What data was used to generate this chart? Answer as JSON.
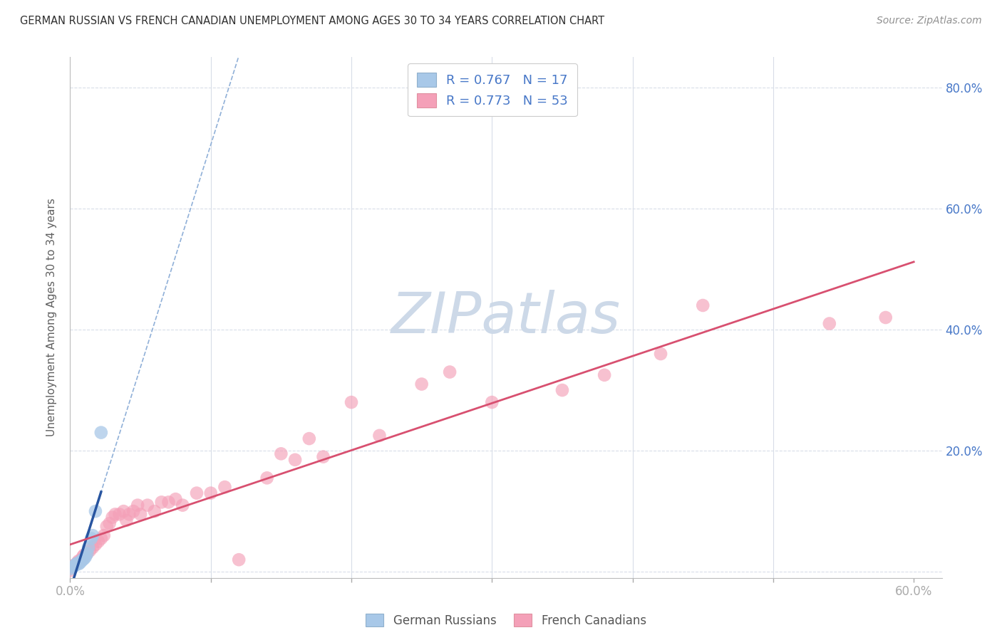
{
  "title": "GERMAN RUSSIAN VS FRENCH CANADIAN UNEMPLOYMENT AMONG AGES 30 TO 34 YEARS CORRELATION CHART",
  "source": "Source: ZipAtlas.com",
  "ylabel": "Unemployment Among Ages 30 to 34 years",
  "xlim": [
    0.0,
    0.62
  ],
  "ylim": [
    -0.01,
    0.85
  ],
  "gr_R": 0.767,
  "gr_N": 17,
  "fc_R": 0.773,
  "fc_N": 53,
  "gr_scatter_color": "#a8c8e8",
  "fc_scatter_color": "#f4a0b8",
  "gr_line_color": "#2855a0",
  "fc_line_color": "#d85070",
  "gr_dashed_color": "#90b0d8",
  "watermark": "ZIPatlas",
  "watermark_color": "#cdd9e8",
  "grid_color": "#d8dde8",
  "axis_label_color": "#4878c8",
  "title_color": "#303030",
  "source_color": "#909090",
  "bg_color": "#ffffff",
  "gr_x": [
    0.0,
    0.002,
    0.003,
    0.004,
    0.005,
    0.006,
    0.007,
    0.008,
    0.009,
    0.01,
    0.011,
    0.012,
    0.013,
    0.015,
    0.016,
    0.018,
    0.022
  ],
  "gr_y": [
    0.005,
    0.008,
    0.01,
    0.012,
    0.014,
    0.013,
    0.015,
    0.018,
    0.02,
    0.022,
    0.025,
    0.03,
    0.04,
    0.055,
    0.06,
    0.1,
    0.23
  ],
  "fc_x": [
    0.0,
    0.0,
    0.002,
    0.004,
    0.005,
    0.006,
    0.008,
    0.009,
    0.01,
    0.012,
    0.014,
    0.016,
    0.018,
    0.02,
    0.022,
    0.024,
    0.026,
    0.028,
    0.03,
    0.032,
    0.035,
    0.038,
    0.04,
    0.042,
    0.045,
    0.048,
    0.05,
    0.055,
    0.06,
    0.065,
    0.07,
    0.075,
    0.08,
    0.09,
    0.1,
    0.11,
    0.12,
    0.14,
    0.15,
    0.16,
    0.17,
    0.18,
    0.2,
    0.22,
    0.25,
    0.27,
    0.3,
    0.35,
    0.38,
    0.42,
    0.45,
    0.54,
    0.58
  ],
  "fc_y": [
    0.002,
    0.008,
    0.01,
    0.012,
    0.015,
    0.018,
    0.02,
    0.025,
    0.028,
    0.03,
    0.035,
    0.04,
    0.045,
    0.05,
    0.055,
    0.06,
    0.075,
    0.08,
    0.09,
    0.095,
    0.095,
    0.1,
    0.085,
    0.095,
    0.1,
    0.11,
    0.095,
    0.11,
    0.1,
    0.115,
    0.115,
    0.12,
    0.11,
    0.13,
    0.13,
    0.14,
    0.02,
    0.155,
    0.195,
    0.185,
    0.22,
    0.19,
    0.28,
    0.225,
    0.31,
    0.33,
    0.28,
    0.3,
    0.325,
    0.36,
    0.44,
    0.41,
    0.42
  ]
}
